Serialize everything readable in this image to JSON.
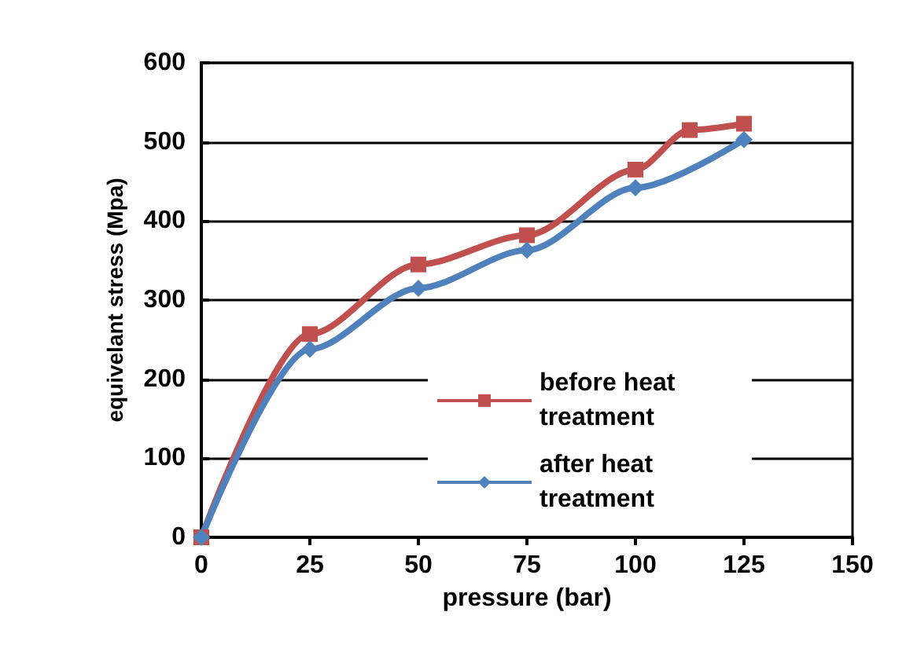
{
  "chart_data": {
    "type": "line",
    "xlabel": "pressure (bar)",
    "ylabel": "equivelant stress (Mpa)",
    "xlim": [
      0,
      150
    ],
    "xticks": [
      0,
      25,
      50,
      75,
      100,
      125,
      150
    ],
    "ylim": [
      0,
      600
    ],
    "yticks": [
      0,
      100,
      200,
      300,
      400,
      500,
      600
    ],
    "grid": "y",
    "legend": "bottom right",
    "series": [
      {
        "name": "before heat treatment",
        "color": "#c0504d",
        "marker": "square",
        "x": [
          0,
          25,
          50,
          75,
          100,
          112.5,
          125
        ],
        "values": [
          0,
          257,
          345,
          382,
          465,
          515,
          523
        ]
      },
      {
        "name": "after heat treatment",
        "color": "#4f81bd",
        "marker": "diamond",
        "x": [
          0,
          25,
          50,
          75,
          100,
          125
        ],
        "values": [
          0,
          238,
          315,
          363,
          442,
          503
        ]
      }
    ]
  }
}
